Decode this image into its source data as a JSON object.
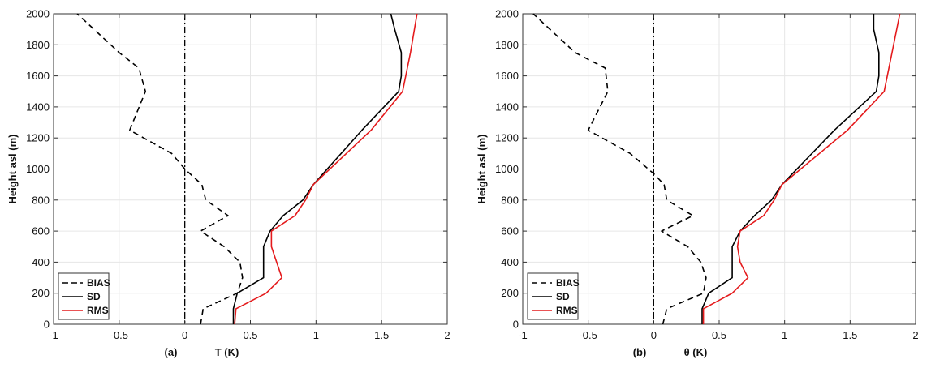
{
  "chart_data": [
    {
      "type": "line",
      "panel_label": "(a)",
      "xlabel": "T (K)",
      "ylabel": "Height asl (m)",
      "xlim": [
        -1,
        2
      ],
      "ylim": [
        0,
        2000
      ],
      "xticks": [
        "-1",
        "-0.5",
        "0",
        "0.5",
        "1",
        "1.5",
        "2"
      ],
      "yticks": [
        "0",
        "200",
        "400",
        "600",
        "800",
        "1000",
        "1200",
        "1400",
        "1600",
        "1800",
        "2000"
      ],
      "grid": true,
      "legend_position": "bottom-left",
      "series": [
        {
          "name": "BIAS",
          "color": "#000000",
          "style": "dashed",
          "points": [
            [
              0.12,
              0
            ],
            [
              0.14,
              100
            ],
            [
              0.4,
              200
            ],
            [
              0.44,
              300
            ],
            [
              0.42,
              400
            ],
            [
              0.3,
              500
            ],
            [
              0.12,
              600
            ],
            [
              0.33,
              700
            ],
            [
              0.16,
              800
            ],
            [
              0.13,
              900
            ],
            [
              0.0,
              1000
            ],
            [
              -0.1,
              1100
            ],
            [
              -0.42,
              1250
            ],
            [
              -0.3,
              1500
            ],
            [
              -0.35,
              1650
            ],
            [
              -0.5,
              1750
            ],
            [
              -0.82,
              2000
            ]
          ]
        },
        {
          "name": "SD",
          "color": "#000000",
          "style": "solid",
          "points": [
            [
              0.37,
              0
            ],
            [
              0.37,
              100
            ],
            [
              0.4,
              200
            ],
            [
              0.6,
              300
            ],
            [
              0.6,
              400
            ],
            [
              0.6,
              500
            ],
            [
              0.65,
              600
            ],
            [
              0.75,
              700
            ],
            [
              0.9,
              800
            ],
            [
              0.98,
              900
            ],
            [
              1.35,
              1250
            ],
            [
              1.63,
              1500
            ],
            [
              1.65,
              1600
            ],
            [
              1.65,
              1750
            ],
            [
              1.6,
              1900
            ],
            [
              1.57,
              2000
            ]
          ]
        },
        {
          "name": "RMS",
          "color": "#e41a1c",
          "style": "solid",
          "points": [
            [
              0.38,
              0
            ],
            [
              0.39,
              100
            ],
            [
              0.62,
              200
            ],
            [
              0.74,
              300
            ],
            [
              0.7,
              400
            ],
            [
              0.66,
              500
            ],
            [
              0.66,
              600
            ],
            [
              0.84,
              700
            ],
            [
              0.92,
              800
            ],
            [
              0.98,
              900
            ],
            [
              1.42,
              1250
            ],
            [
              1.66,
              1500
            ],
            [
              1.72,
              1750
            ],
            [
              1.77,
              2000
            ]
          ]
        }
      ]
    },
    {
      "type": "line",
      "panel_label": "(b)",
      "xlabel": "θ (K)",
      "ylabel": "Height asl (m)",
      "xlim": [
        -1,
        2
      ],
      "ylim": [
        0,
        2000
      ],
      "xticks": [
        "-1",
        "-0.5",
        "0",
        "0.5",
        "1",
        "1.5",
        "2"
      ],
      "yticks": [
        "0",
        "200",
        "400",
        "600",
        "800",
        "1000",
        "1200",
        "1400",
        "1600",
        "1800",
        "2000"
      ],
      "grid": true,
      "legend_position": "bottom-left",
      "series": [
        {
          "name": "BIAS",
          "color": "#000000",
          "style": "dashed",
          "points": [
            [
              0.07,
              0
            ],
            [
              0.1,
              100
            ],
            [
              0.38,
              200
            ],
            [
              0.4,
              300
            ],
            [
              0.36,
              400
            ],
            [
              0.26,
              500
            ],
            [
              0.06,
              600
            ],
            [
              0.3,
              700
            ],
            [
              0.1,
              800
            ],
            [
              0.08,
              900
            ],
            [
              0.0,
              970
            ],
            [
              -0.18,
              1100
            ],
            [
              -0.5,
              1250
            ],
            [
              -0.35,
              1500
            ],
            [
              -0.37,
              1650
            ],
            [
              -0.6,
              1750
            ],
            [
              -0.92,
              2000
            ]
          ]
        },
        {
          "name": "SD",
          "color": "#000000",
          "style": "solid",
          "points": [
            [
              0.37,
              0
            ],
            [
              0.37,
              100
            ],
            [
              0.42,
              200
            ],
            [
              0.6,
              300
            ],
            [
              0.6,
              400
            ],
            [
              0.6,
              500
            ],
            [
              0.66,
              600
            ],
            [
              0.77,
              700
            ],
            [
              0.9,
              800
            ],
            [
              0.98,
              900
            ],
            [
              1.38,
              1250
            ],
            [
              1.7,
              1500
            ],
            [
              1.72,
              1600
            ],
            [
              1.72,
              1750
            ],
            [
              1.68,
              1900
            ],
            [
              1.68,
              2000
            ]
          ]
        },
        {
          "name": "RMS",
          "color": "#e41a1c",
          "style": "solid",
          "points": [
            [
              0.38,
              0
            ],
            [
              0.38,
              100
            ],
            [
              0.6,
              200
            ],
            [
              0.72,
              300
            ],
            [
              0.66,
              400
            ],
            [
              0.64,
              500
            ],
            [
              0.66,
              600
            ],
            [
              0.84,
              700
            ],
            [
              0.92,
              800
            ],
            [
              0.98,
              900
            ],
            [
              1.48,
              1250
            ],
            [
              1.76,
              1500
            ],
            [
              1.82,
              1750
            ],
            [
              1.88,
              2000
            ]
          ]
        }
      ]
    }
  ]
}
